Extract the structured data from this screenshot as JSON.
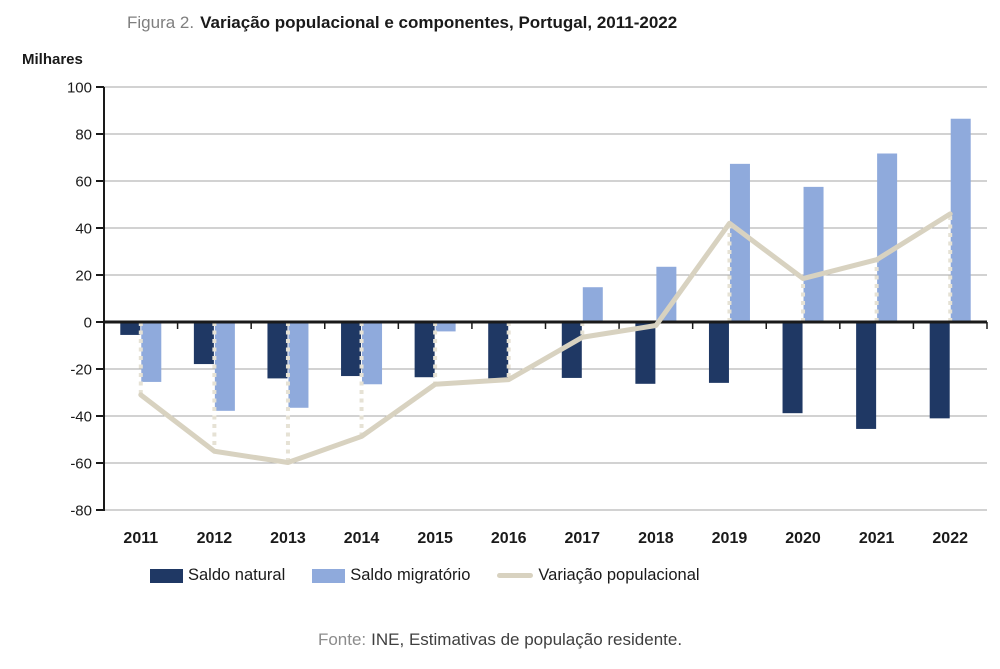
{
  "title": {
    "prefix": "Figura 2.",
    "text": "Variação populacional e componentes, Portugal, 2011-2022"
  },
  "y_axis_units_label": "Milhares",
  "legend": {
    "items": [
      {
        "label": "Saldo natural",
        "color": "#1F3864",
        "marker": "bar-swatch"
      },
      {
        "label": "Saldo migratório",
        "color": "#8FAADC",
        "marker": "bar-swatch"
      },
      {
        "label": "Variação populacional",
        "color": "#D8D2C0",
        "marker": "line-swatch"
      }
    ]
  },
  "source": {
    "prefix": "Fonte:",
    "text": "INE, Estimativas de população residente."
  },
  "colors": {
    "saldo_natural": "#1F3864",
    "saldo_migratorio": "#8FAADC",
    "variacao_populacional": "#D8D2C0",
    "connector_dots": "#E6E2D5",
    "gridline": "#A6A6A6",
    "axis": "#1A1A1A"
  },
  "chart_data": {
    "type": "bar",
    "subtype": "grouped bars with overlaid line (values in thousands)",
    "title": "Variação populacional e componentes, Portugal, 2011-2022",
    "xlabel": "",
    "ylabel": "Milhares",
    "categories": [
      "2011",
      "2012",
      "2013",
      "2014",
      "2015",
      "2016",
      "2017",
      "2018",
      "2019",
      "2020",
      "2021",
      "2022"
    ],
    "series": [
      {
        "name": "Saldo natural",
        "type": "bar",
        "color": "#1F3864",
        "values": [
          -5.5,
          -17.9,
          -24.0,
          -23.0,
          -23.5,
          -24.0,
          -23.8,
          -26.3,
          -25.9,
          -38.8,
          -45.5,
          -41.0
        ]
      },
      {
        "name": "Saldo migratório",
        "type": "bar",
        "color": "#8FAADC",
        "values": [
          -25.5,
          -37.8,
          -36.5,
          -26.5,
          -4.0,
          -0.5,
          14.8,
          23.5,
          67.3,
          57.5,
          71.7,
          86.5
        ]
      },
      {
        "name": "Variação populacional",
        "type": "line",
        "color": "#D8D2C0",
        "values": [
          -31.0,
          -55.0,
          -59.8,
          -48.7,
          -26.5,
          -24.5,
          -6.5,
          -1.5,
          42.0,
          18.5,
          26.5,
          46.0
        ]
      }
    ],
    "ylim": [
      -80,
      100
    ],
    "ytick_step": 20,
    "grid": true,
    "legend_position": "bottom",
    "annotations": "dotted vertical beige connector at each year from 0 down/up to the line value"
  }
}
